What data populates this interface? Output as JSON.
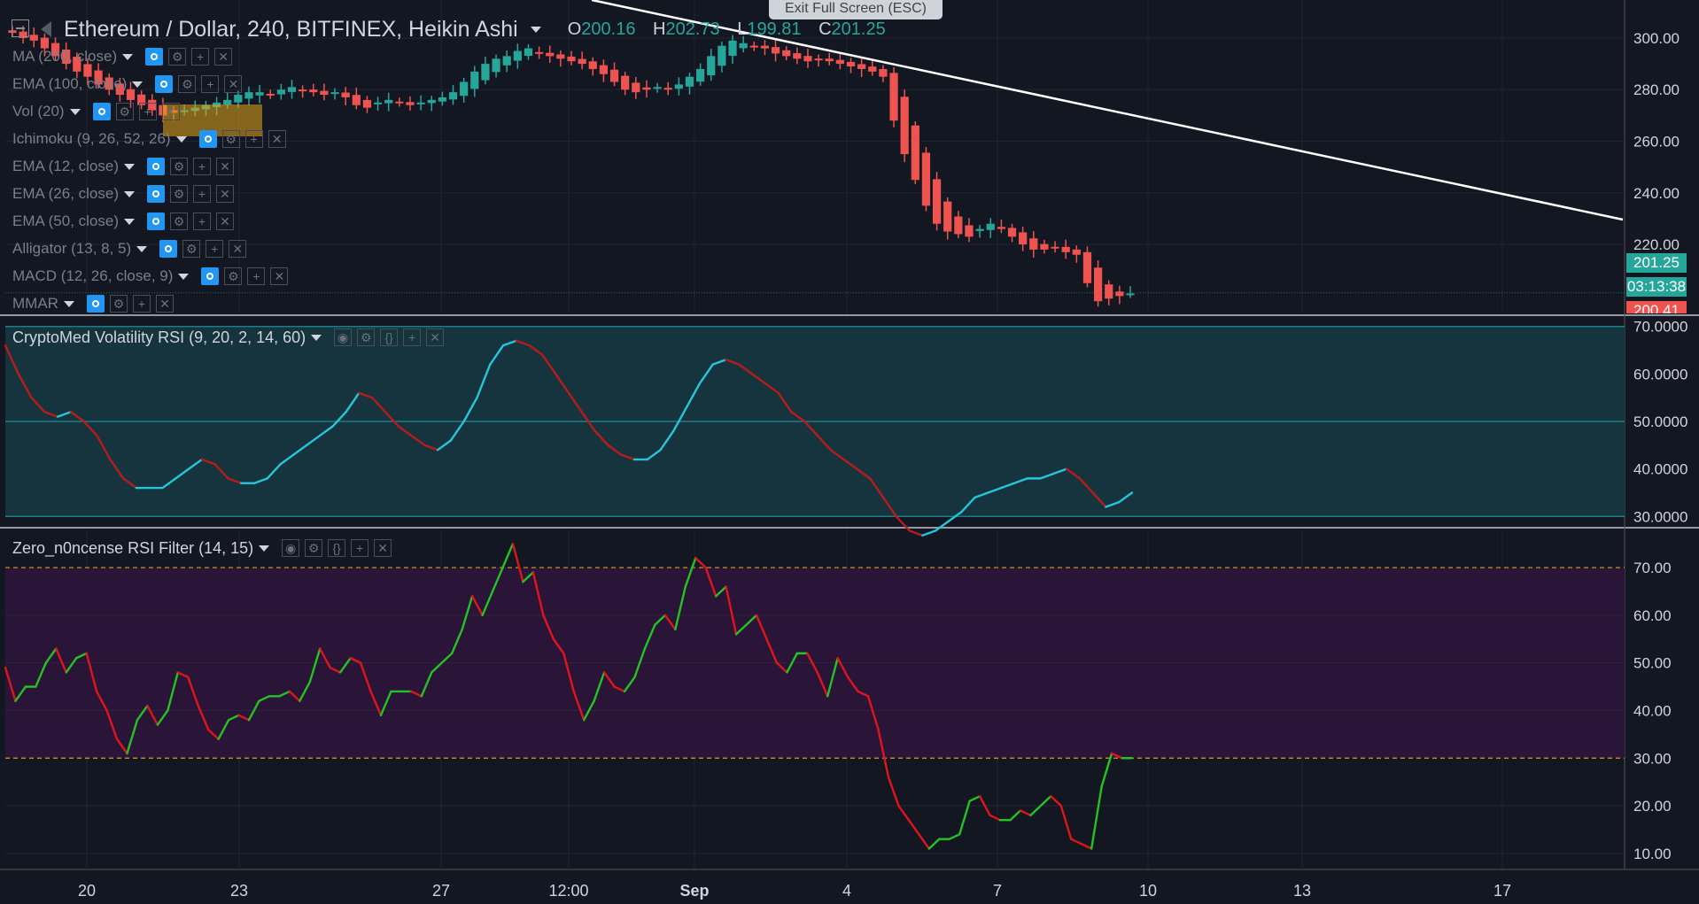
{
  "app": {
    "exit_fullscreen_label": "Exit Full Screen (ESC)"
  },
  "header": {
    "symbol_title": "Ethereum / Dollar, 240, BITFINEX, Heikin Ashi",
    "ohlc": [
      {
        "key": "O",
        "value": "200.16"
      },
      {
        "key": "H",
        "value": "202.73"
      },
      {
        "key": "L",
        "value": "199.81"
      },
      {
        "key": "C",
        "value": "201.25"
      }
    ]
  },
  "indicators": [
    "MA (200, close)",
    "EMA (100, close)",
    "Vol (20)",
    "Ichimoku (9, 26, 52, 26)",
    "EMA (12, close)",
    "EMA (26, close)",
    "EMA (50, close)",
    "Alligator (13, 8, 5)",
    "MACD (12, 26, close, 9)",
    "MMAR"
  ],
  "price_axis": {
    "ticks": [
      "300.00",
      "280.00",
      "260.00",
      "240.00",
      "220.00"
    ],
    "last_price": "201.25",
    "countdown": "03:13:38",
    "low_tag": "200.41"
  },
  "volatility_rsi": {
    "title": "CryptoMed Volatility RSI (9, 20, 2, 14, 60)",
    "ticks": [
      "70.0000",
      "60.0000",
      "50.0000",
      "40.0000",
      "30.0000"
    ]
  },
  "rsi_filter": {
    "title": "Zero_n0ncense RSI Filter (14, 15)",
    "ticks": [
      "70.00",
      "60.00",
      "50.00",
      "40.00",
      "30.00",
      "20.00",
      "10.00"
    ]
  },
  "time_axis": {
    "labels": [
      "20",
      "23",
      "27",
      "12:00",
      "Sep",
      "4",
      "7",
      "10",
      "13",
      "17"
    ]
  },
  "colors": {
    "background": "#131722",
    "up": "#26a69a",
    "down": "#ef5350",
    "trendline": "#ffffff",
    "vol_rsi_band": "#16343d",
    "vol_rsi_up": "#26c6da",
    "vol_rsi_down": "#b71c1c",
    "rsi_band": "#2a1538",
    "rsi_up": "#22c322",
    "rsi_down": "#e0141a",
    "level_line": "#d4a017"
  },
  "chart_data": [
    {
      "type": "candlestick",
      "title": "Ethereum / Dollar, 240, BITFINEX, Heikin Ashi",
      "ylim": [
        196,
        312
      ],
      "close": [
        302,
        300,
        299,
        296,
        293,
        290,
        287,
        285,
        282,
        280,
        278,
        276,
        274,
        272,
        270,
        271,
        272,
        273,
        274,
        275,
        276,
        278,
        279,
        279,
        278,
        280,
        281,
        280,
        279,
        278,
        279,
        277,
        274,
        273,
        275,
        276,
        275,
        274,
        275,
        276,
        277,
        279,
        283,
        287,
        290,
        292,
        293,
        295,
        296,
        294,
        293,
        292,
        291,
        290,
        288,
        286,
        283,
        280,
        279,
        280,
        281,
        280,
        282,
        285,
        288,
        293,
        297,
        299,
        298,
        297,
        296,
        294,
        293,
        292,
        291,
        292,
        291,
        290,
        289,
        288,
        287,
        285,
        268,
        255,
        245,
        235,
        228,
        225,
        224,
        223,
        226,
        228,
        226,
        223,
        220,
        218,
        218,
        219,
        217,
        216,
        205,
        198,
        199,
        200,
        201
      ],
      "open_offset_note": "",
      "ticks": [
        "300.00",
        "280.00",
        "260.00",
        "240.00",
        "220.00"
      ]
    },
    {
      "type": "line",
      "title": "CryptoMed Volatility RSI (9, 20, 2, 14, 60)",
      "ylim": [
        28,
        72
      ],
      "values": [
        66,
        60,
        55,
        52,
        51,
        52,
        50,
        47,
        42,
        38,
        36,
        36,
        36,
        38,
        40,
        42,
        41,
        38,
        37,
        37,
        38,
        41,
        43,
        45,
        47,
        49,
        52,
        56,
        55,
        52,
        49,
        47,
        45,
        44,
        46,
        50,
        55,
        62,
        66,
        67,
        66,
        64,
        60,
        56,
        52,
        48,
        45,
        43,
        42,
        42,
        44,
        48,
        53,
        58,
        62,
        63,
        62,
        60,
        58,
        56,
        52,
        50,
        47,
        44,
        42,
        40,
        38,
        34,
        30,
        27,
        26,
        27,
        29,
        31,
        34,
        35,
        36,
        37,
        38,
        38,
        39,
        40,
        38,
        35,
        32,
        33,
        35
      ]
    },
    {
      "type": "line",
      "title": "Zero_n0ncense RSI Filter (14, 15)",
      "ylim": [
        7,
        78
      ],
      "levels": [
        70,
        30
      ],
      "values": [
        49,
        42,
        45,
        45,
        50,
        53,
        48,
        51,
        52,
        44,
        40,
        34,
        31,
        38,
        41,
        37,
        40,
        48,
        47,
        41,
        36,
        34,
        38,
        39,
        38,
        42,
        43,
        43,
        44,
        42,
        46,
        53,
        49,
        48,
        51,
        50,
        44,
        39,
        44,
        44,
        44,
        43,
        48,
        50,
        52,
        57,
        64,
        60,
        65,
        70,
        75,
        67,
        69,
        60,
        55,
        52,
        44,
        38,
        42,
        48,
        45,
        44,
        47,
        53,
        58,
        60,
        57,
        66,
        72,
        70,
        64,
        66,
        56,
        58,
        60,
        55,
        50,
        48,
        52,
        52,
        48,
        43,
        51,
        47,
        44,
        43,
        36,
        26,
        20,
        17,
        14,
        11,
        13,
        13,
        14,
        21,
        22,
        18,
        17,
        17,
        19,
        18,
        20,
        22,
        20,
        13,
        12,
        11,
        24,
        31,
        30,
        30
      ]
    }
  ]
}
